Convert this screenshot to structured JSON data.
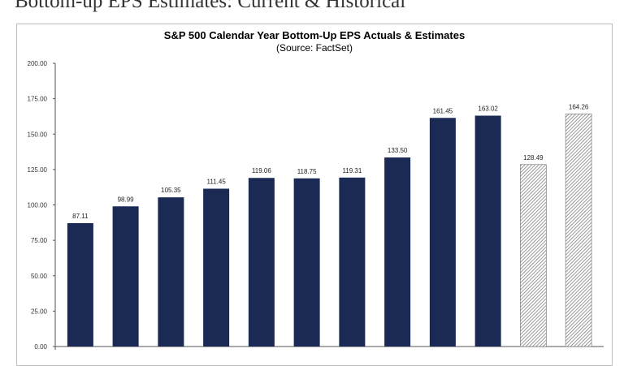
{
  "page": {
    "heading": "Bottom-up EPS Estimates: Current & Historical"
  },
  "colors": {
    "actual_bar": "#1b2a55",
    "estimate_hatch": "#6e6e6e",
    "axis": "#555555"
  },
  "chart_data": {
    "type": "bar",
    "title": "S&P 500 Calendar Year Bottom-Up EPS Actuals & Estimates",
    "subtitle": "(Source: FactSet)",
    "xlabel": "",
    "ylabel": "",
    "ylim": [
      0,
      200
    ],
    "yticks": [
      "200.00",
      "175.00",
      "150.00",
      "125.00",
      "100.00",
      "75.00",
      "50.00",
      "25.00",
      "0.00"
    ],
    "ytick_values": [
      200,
      175,
      150,
      125,
      100,
      75,
      50,
      25,
      0
    ],
    "grid": false,
    "values": [
      87.11,
      98.99,
      105.35,
      111.45,
      119.06,
      118.75,
      119.31,
      133.5,
      161.45,
      163.02,
      128.49,
      164.26
    ],
    "value_labels": [
      "87.11",
      "98.99",
      "105.35",
      "111.45",
      "119.06",
      "118.75",
      "119.31",
      "133.50",
      "161.45",
      "163.02",
      "128.49",
      "164.26"
    ],
    "bar_styles": [
      "actual",
      "actual",
      "actual",
      "actual",
      "actual",
      "actual",
      "actual",
      "actual",
      "actual",
      "actual",
      "estimate",
      "estimate"
    ]
  }
}
